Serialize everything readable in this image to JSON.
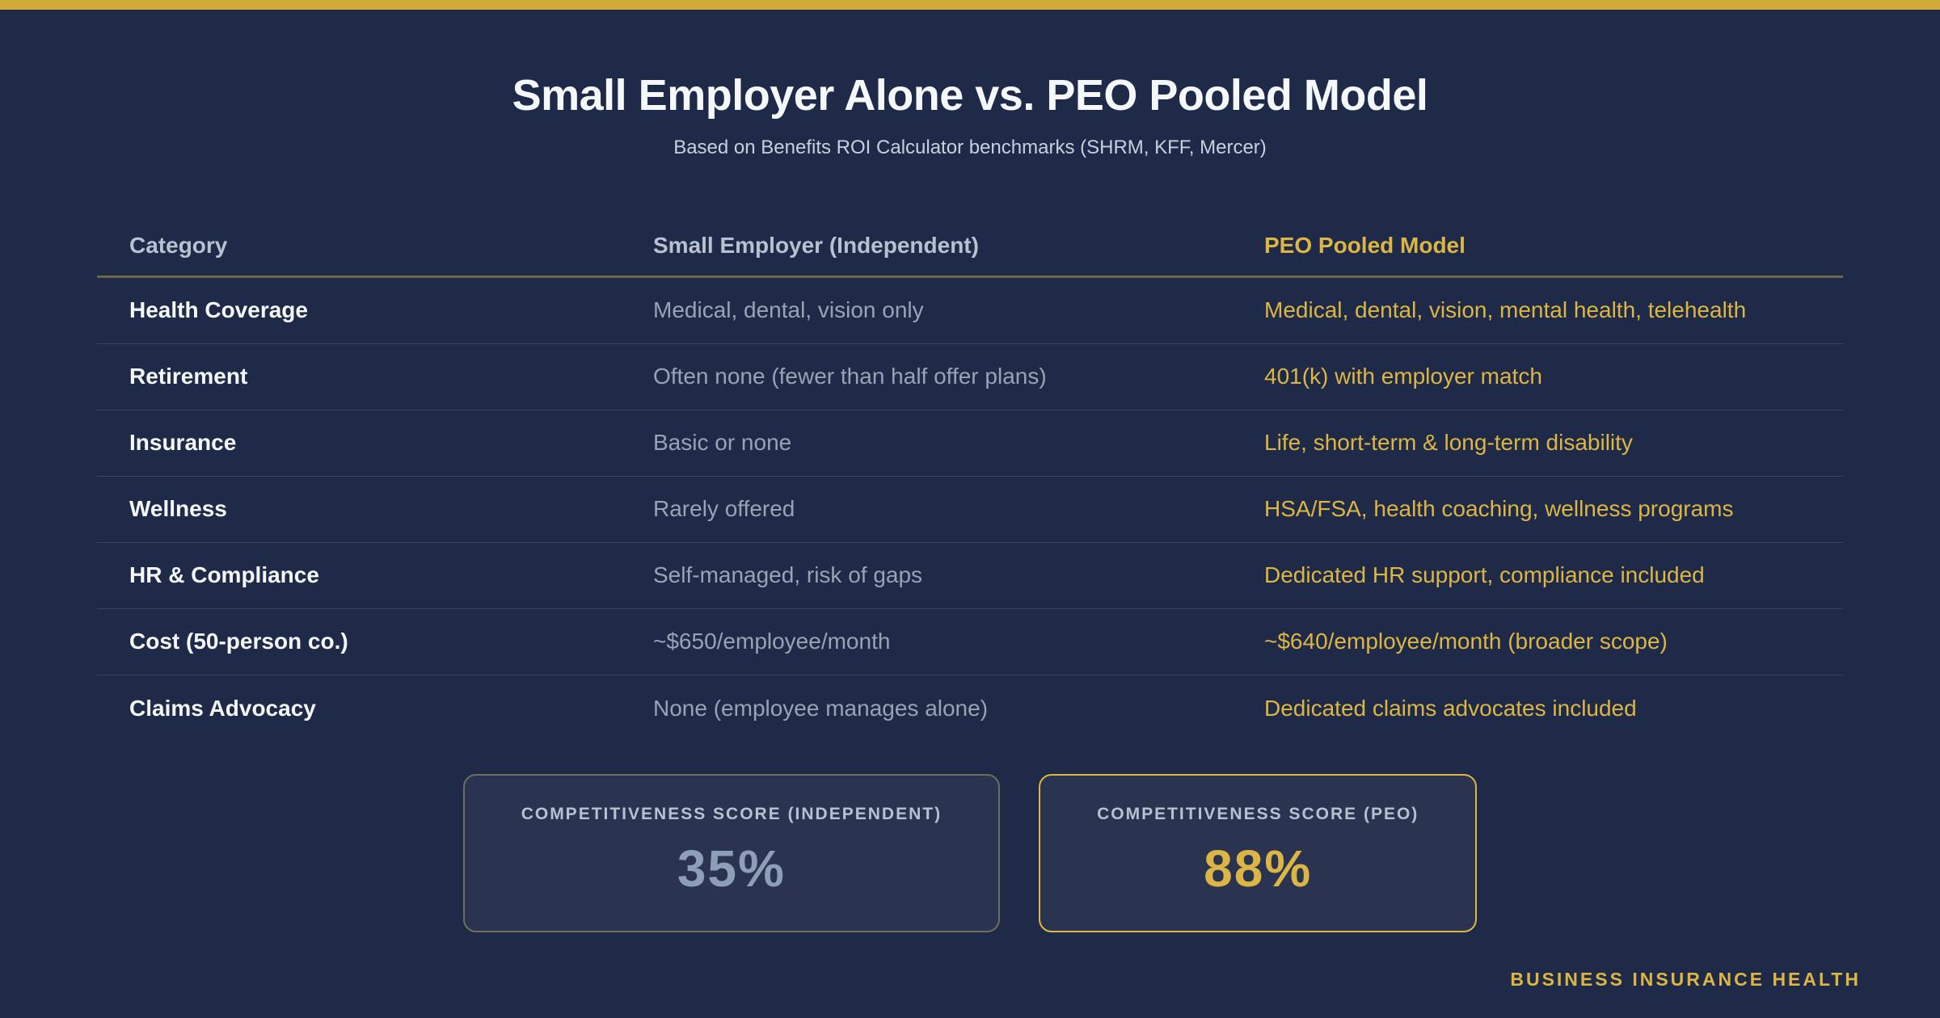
{
  "header": {
    "title": "Small Employer Alone vs. PEO Pooled Model",
    "subtitle": "Based on Benefits ROI Calculator benchmarks (SHRM, KFF, Mercer)"
  },
  "table": {
    "columns": [
      "Category",
      "Small Employer (Independent)",
      "PEO Pooled Model"
    ],
    "rows": [
      [
        "Health Coverage",
        "Medical, dental, vision only",
        "Medical, dental, vision, mental health, telehealth"
      ],
      [
        "Retirement",
        "Often none (fewer than half offer plans)",
        "401(k) with employer match"
      ],
      [
        "Insurance",
        "Basic or none",
        "Life, short-term & long-term disability"
      ],
      [
        "Wellness",
        "Rarely offered",
        "HSA/FSA, health coaching, wellness programs"
      ],
      [
        "HR & Compliance",
        "Self-managed, risk of gaps",
        "Dedicated HR support, compliance included"
      ],
      [
        "Cost (50-person co.)",
        "~$650/employee/month",
        "~$640/employee/month (broader scope)"
      ],
      [
        "Claims Advocacy",
        "None (employee manages alone)",
        "Dedicated claims advocates included"
      ]
    ]
  },
  "scores": [
    {
      "label": "COMPETITIVENESS SCORE (INDEPENDENT)",
      "value": "35%"
    },
    {
      "label": "COMPETITIVENESS SCORE (PEO)",
      "value": "88%"
    }
  ],
  "footer": {
    "brand": "BUSINESS INSURANCE HEALTH"
  },
  "colors": {
    "bg": "#1f2a48",
    "gold": "#d1ab3a",
    "gold_text": "#dcb644",
    "white": "#f5f8fb",
    "muted": "#98a3b3",
    "header_gray": "#b7c1d0",
    "subtitle": "#c8d0de",
    "card_bg": "#2a3451",
    "card_border_muted": "#6d6e5c",
    "separator": "#3c4660",
    "header_underline": "#6b684a",
    "score_gray": "#8f9eb7"
  },
  "chart_data": {
    "type": "table",
    "title": "Small Employer Alone vs. PEO Pooled Model",
    "subtitle": "Based on Benefits ROI Calculator benchmarks (SHRM, KFF, Mercer)",
    "columns": [
      "Category",
      "Small Employer (Independent)",
      "PEO Pooled Model"
    ],
    "rows": [
      [
        "Health Coverage",
        "Medical, dental, vision only",
        "Medical, dental, vision, mental health, telehealth"
      ],
      [
        "Retirement",
        "Often none (fewer than half offer plans)",
        "401(k) with employer match"
      ],
      [
        "Insurance",
        "Basic or none",
        "Life, short-term & long-term disability"
      ],
      [
        "Wellness",
        "Rarely offered",
        "HSA/FSA, health coaching, wellness programs"
      ],
      [
        "HR & Compliance",
        "Self-managed, risk of gaps",
        "Dedicated HR support, compliance included"
      ],
      [
        "Cost (50-person co.)",
        "~$650/employee/month",
        "~$640/employee/month (broader scope)"
      ],
      [
        "Claims Advocacy",
        "None (employee manages alone)",
        "Dedicated claims advocates included"
      ]
    ],
    "scores": [
      {
        "label": "Competitiveness Score (Independent)",
        "value_pct": 35
      },
      {
        "label": "Competitiveness Score (PEO)",
        "value_pct": 88
      }
    ]
  }
}
